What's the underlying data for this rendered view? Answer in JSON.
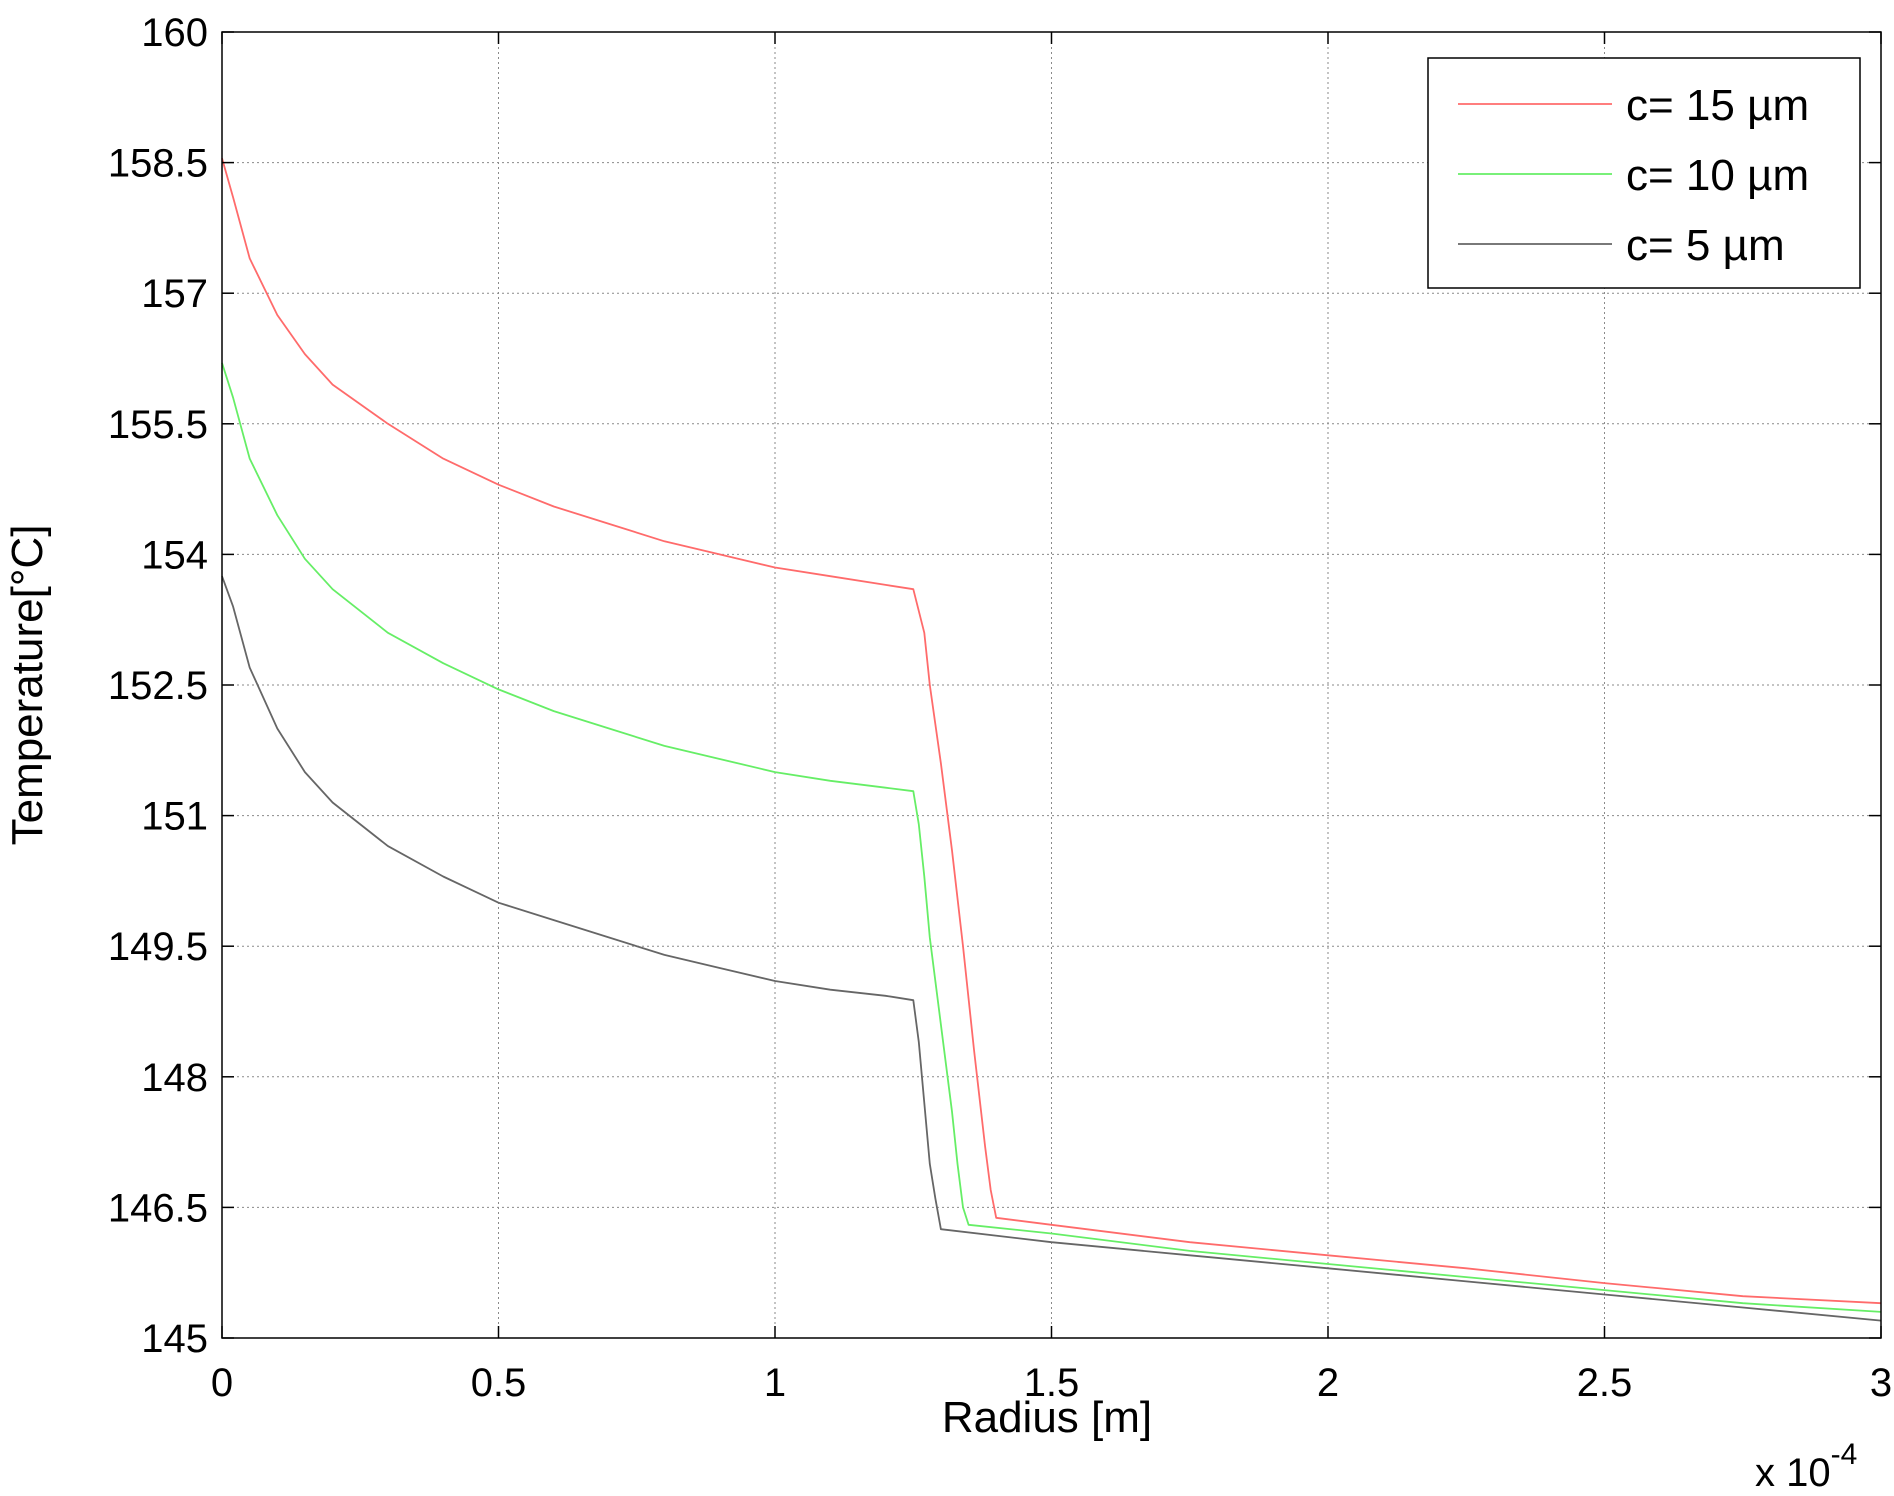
{
  "chart_data": {
    "type": "line",
    "title": "",
    "xlabel": "Radius [m]",
    "ylabel": "Temperature[°C]",
    "x_multiplier_label": "x 10",
    "x_multiplier_exponent": "-4",
    "xlim": [
      0,
      3
    ],
    "ylim": [
      145,
      160
    ],
    "x_ticks": [
      0,
      0.5,
      1,
      1.5,
      2,
      2.5,
      3
    ],
    "x_tick_labels": [
      "0",
      "0.5",
      "1",
      "1.5",
      "2",
      "2.5",
      "3"
    ],
    "y_ticks": [
      145,
      146.5,
      148,
      149.5,
      151,
      152.5,
      154,
      155.5,
      157,
      158.5,
      160
    ],
    "y_tick_labels": [
      "145",
      "146.5",
      "148",
      "149.5",
      "151",
      "152.5",
      "154",
      "155.5",
      "157",
      "158.5",
      "160"
    ],
    "grid": true,
    "grid_style": "dotted",
    "legend_position": "top-right",
    "series": [
      {
        "name": "c= 15 µm",
        "color": "#ff6b6b",
        "points": [
          [
            0,
            158.55
          ],
          [
            0.02,
            158.1
          ],
          [
            0.05,
            157.4
          ],
          [
            0.1,
            156.75
          ],
          [
            0.15,
            156.3
          ],
          [
            0.2,
            155.95
          ],
          [
            0.3,
            155.5
          ],
          [
            0.4,
            155.1
          ],
          [
            0.5,
            154.8
          ],
          [
            0.6,
            154.55
          ],
          [
            0.7,
            154.35
          ],
          [
            0.8,
            154.15
          ],
          [
            0.9,
            154.0
          ],
          [
            1.0,
            153.85
          ],
          [
            1.1,
            153.75
          ],
          [
            1.2,
            153.65
          ],
          [
            1.25,
            153.6
          ],
          [
            1.27,
            153.1
          ],
          [
            1.28,
            152.5
          ],
          [
            1.3,
            151.6
          ],
          [
            1.32,
            150.6
          ],
          [
            1.34,
            149.5
          ],
          [
            1.36,
            148.3
          ],
          [
            1.38,
            147.2
          ],
          [
            1.39,
            146.7
          ],
          [
            1.4,
            146.38
          ],
          [
            1.5,
            146.3
          ],
          [
            1.75,
            146.1
          ],
          [
            2.0,
            145.95
          ],
          [
            2.25,
            145.8
          ],
          [
            2.5,
            145.63
          ],
          [
            2.75,
            145.48
          ],
          [
            3.0,
            145.4
          ]
        ]
      },
      {
        "name": "c= 10 µm",
        "color": "#66ee66",
        "points": [
          [
            0,
            156.2
          ],
          [
            0.02,
            155.8
          ],
          [
            0.05,
            155.1
          ],
          [
            0.1,
            154.45
          ],
          [
            0.15,
            153.95
          ],
          [
            0.2,
            153.6
          ],
          [
            0.3,
            153.1
          ],
          [
            0.4,
            152.75
          ],
          [
            0.5,
            152.45
          ],
          [
            0.6,
            152.2
          ],
          [
            0.7,
            152.0
          ],
          [
            0.8,
            151.8
          ],
          [
            0.9,
            151.65
          ],
          [
            1.0,
            151.5
          ],
          [
            1.1,
            151.4
          ],
          [
            1.2,
            151.32
          ],
          [
            1.25,
            151.28
          ],
          [
            1.26,
            150.9
          ],
          [
            1.27,
            150.3
          ],
          [
            1.28,
            149.6
          ],
          [
            1.3,
            148.6
          ],
          [
            1.32,
            147.6
          ],
          [
            1.33,
            147.0
          ],
          [
            1.34,
            146.5
          ],
          [
            1.35,
            146.3
          ],
          [
            1.5,
            146.2
          ],
          [
            1.75,
            146.0
          ],
          [
            2.0,
            145.85
          ],
          [
            2.25,
            145.7
          ],
          [
            2.5,
            145.55
          ],
          [
            2.75,
            145.4
          ],
          [
            3.0,
            145.3
          ]
        ]
      },
      {
        "name": "c= 5 µm",
        "color": "#666666",
        "points": [
          [
            0,
            153.75
          ],
          [
            0.02,
            153.4
          ],
          [
            0.05,
            152.7
          ],
          [
            0.1,
            152.0
          ],
          [
            0.15,
            151.5
          ],
          [
            0.2,
            151.15
          ],
          [
            0.3,
            150.65
          ],
          [
            0.4,
            150.3
          ],
          [
            0.5,
            150.0
          ],
          [
            0.6,
            149.8
          ],
          [
            0.7,
            149.6
          ],
          [
            0.8,
            149.4
          ],
          [
            0.9,
            149.25
          ],
          [
            1.0,
            149.1
          ],
          [
            1.1,
            149.0
          ],
          [
            1.2,
            148.93
          ],
          [
            1.25,
            148.88
          ],
          [
            1.26,
            148.4
          ],
          [
            1.27,
            147.7
          ],
          [
            1.28,
            147.0
          ],
          [
            1.29,
            146.6
          ],
          [
            1.3,
            146.25
          ],
          [
            1.5,
            146.1
          ],
          [
            1.75,
            145.95
          ],
          [
            2.0,
            145.8
          ],
          [
            2.25,
            145.65
          ],
          [
            2.5,
            145.5
          ],
          [
            2.75,
            145.35
          ],
          [
            3.0,
            145.2
          ]
        ]
      }
    ]
  }
}
